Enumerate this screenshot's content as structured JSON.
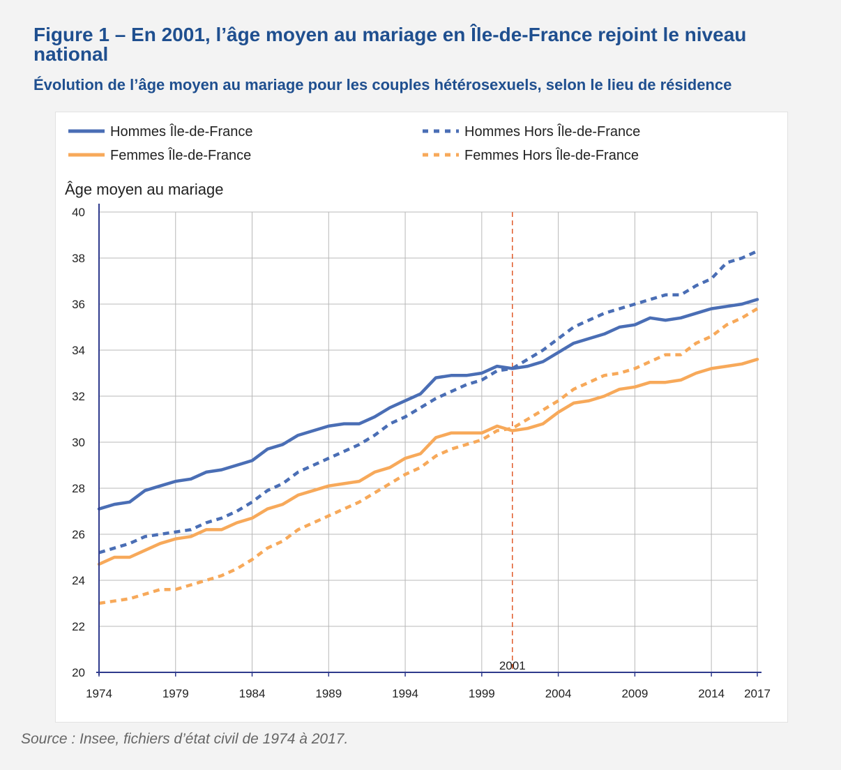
{
  "title": "Figure 1 – En 2001, l’âge moyen au mariage en Île-de-France rejoint le niveau national",
  "subtitle": "Évolution de l’âge moyen au mariage pour les couples hétérosexuels, selon le lieu de résidence",
  "source": "Source : Insee, fichiers d’état civil de 1974 à 2017.",
  "colors": {
    "blue": "#4a6eb5",
    "orange": "#f7a95a",
    "marker": "#e05a2a",
    "grid": "#b8b8b8",
    "axis": "#2e3a8c"
  },
  "chart_data": {
    "type": "line",
    "ylabel": "Âge moyen au mariage",
    "xlabel": "",
    "xlim": [
      1974,
      2017
    ],
    "ylim": [
      20,
      40
    ],
    "yticks": [
      20,
      22,
      24,
      26,
      28,
      30,
      32,
      34,
      36,
      38,
      40
    ],
    "xticks": [
      1974,
      1979,
      1984,
      1989,
      1994,
      1999,
      2004,
      2009,
      2014,
      2017
    ],
    "grid": true,
    "legend_position": "top",
    "annotation": {
      "x": 2001,
      "label": "2001"
    },
    "x": [
      1974,
      1975,
      1976,
      1977,
      1978,
      1979,
      1980,
      1981,
      1982,
      1983,
      1984,
      1985,
      1986,
      1987,
      1988,
      1989,
      1990,
      1991,
      1992,
      1993,
      1994,
      1995,
      1996,
      1997,
      1998,
      1999,
      2000,
      2001,
      2002,
      2003,
      2004,
      2005,
      2006,
      2007,
      2008,
      2009,
      2010,
      2011,
      2012,
      2013,
      2014,
      2015,
      2016,
      2017
    ],
    "series": [
      {
        "name": "Hommes Île-de-France",
        "color": "#4a6eb5",
        "dash": "solid",
        "values": [
          27.1,
          27.3,
          27.4,
          27.9,
          28.1,
          28.3,
          28.4,
          28.7,
          28.8,
          29.0,
          29.2,
          29.7,
          29.9,
          30.3,
          30.5,
          30.7,
          30.8,
          30.8,
          31.1,
          31.5,
          31.8,
          32.1,
          32.8,
          32.9,
          32.9,
          33.0,
          33.3,
          33.2,
          33.3,
          33.5,
          33.9,
          34.3,
          34.5,
          34.7,
          35.0,
          35.1,
          35.4,
          35.3,
          35.4,
          35.6,
          35.8,
          35.9,
          36.0,
          36.2
        ]
      },
      {
        "name": "Hommes Hors Île-de-France",
        "color": "#4a6eb5",
        "dash": "dashed",
        "values": [
          25.2,
          25.4,
          25.6,
          25.9,
          26.0,
          26.1,
          26.2,
          26.5,
          26.7,
          27.0,
          27.4,
          27.9,
          28.2,
          28.7,
          29.0,
          29.3,
          29.6,
          29.9,
          30.3,
          30.8,
          31.1,
          31.5,
          31.9,
          32.2,
          32.5,
          32.7,
          33.1,
          33.2,
          33.6,
          34.0,
          34.5,
          35.0,
          35.3,
          35.6,
          35.8,
          36.0,
          36.2,
          36.4,
          36.4,
          36.8,
          37.1,
          37.8,
          38.0,
          38.3
        ]
      },
      {
        "name": "Femmes Île-de-France",
        "color": "#f7a95a",
        "dash": "solid",
        "values": [
          24.7,
          25.0,
          25.0,
          25.3,
          25.6,
          25.8,
          25.9,
          26.2,
          26.2,
          26.5,
          26.7,
          27.1,
          27.3,
          27.7,
          27.9,
          28.1,
          28.2,
          28.3,
          28.7,
          28.9,
          29.3,
          29.5,
          30.2,
          30.4,
          30.4,
          30.4,
          30.7,
          30.5,
          30.6,
          30.8,
          31.3,
          31.7,
          31.8,
          32.0,
          32.3,
          32.4,
          32.6,
          32.6,
          32.7,
          33.0,
          33.2,
          33.3,
          33.4,
          33.6
        ]
      },
      {
        "name": "Femmes Hors Île-de-France",
        "color": "#f7a95a",
        "dash": "dashed",
        "values": [
          23.0,
          23.1,
          23.2,
          23.4,
          23.6,
          23.6,
          23.8,
          24.0,
          24.2,
          24.5,
          24.9,
          25.4,
          25.7,
          26.2,
          26.5,
          26.8,
          27.1,
          27.4,
          27.8,
          28.2,
          28.6,
          28.9,
          29.4,
          29.7,
          29.9,
          30.1,
          30.5,
          30.6,
          31.0,
          31.4,
          31.8,
          32.3,
          32.6,
          32.9,
          33.0,
          33.2,
          33.5,
          33.8,
          33.8,
          34.3,
          34.6,
          35.1,
          35.4,
          35.8
        ]
      }
    ]
  }
}
